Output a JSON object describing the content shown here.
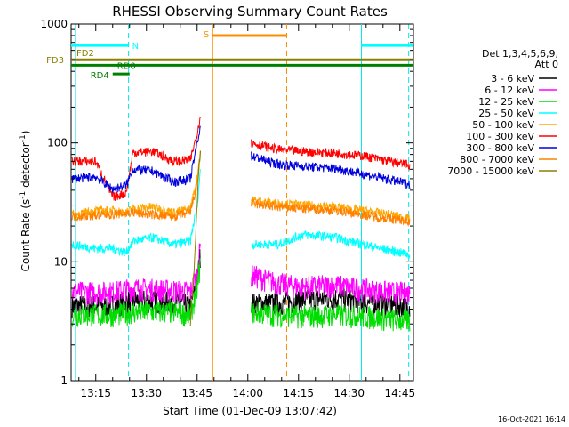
{
  "chart_data": {
    "type": "line",
    "title": "RHESSI Observing Summary Count Rates",
    "xlabel": "Start Time (01-Dec-09 13:07:42)",
    "ylabel_parts": [
      "Count Rate (s",
      "-1",
      " detector",
      "-1",
      ")"
    ],
    "yscale": "log",
    "ylim": [
      1,
      1000
    ],
    "xlim_min": [
      787.7,
      889
    ],
    "x_ticks": [
      {
        "v": 795,
        "label": "13:15"
      },
      {
        "v": 810,
        "label": "13:30"
      },
      {
        "v": 825,
        "label": "13:45"
      },
      {
        "v": 840,
        "label": "14:00"
      },
      {
        "v": 855,
        "label": "14:15"
      },
      {
        "v": 870,
        "label": "14:30"
      },
      {
        "v": 885,
        "label": "14:45"
      }
    ],
    "y_ticks": [
      {
        "v": 1,
        "label": "1"
      },
      {
        "v": 10,
        "label": "10"
      },
      {
        "v": 100,
        "label": "100"
      },
      {
        "v": 1000,
        "label": "1000"
      }
    ],
    "legend_header": [
      "Det 1,3,4,5,6,9,",
      "Att 0"
    ],
    "series": [
      {
        "name": "3 - 6 keV",
        "color": "#000000",
        "x": [
          788,
          800,
          806,
          818,
          823,
          825,
          826
        ],
        "values": [
          4.3,
          4.3,
          4.8,
          4.6,
          4.3,
          7,
          12
        ],
        "x2": [
          841,
          849,
          856,
          866,
          874,
          882,
          888
        ],
        "values2": [
          4.5,
          4.5,
          4.8,
          5,
          4.6,
          4.4,
          4.2
        ]
      },
      {
        "name": "6 - 12 keV",
        "color": "#ff00ff",
        "x": [
          788,
          800,
          806,
          818,
          823,
          825,
          826
        ],
        "values": [
          5.6,
          5.6,
          6,
          5.8,
          5.6,
          8,
          14
        ],
        "x2": [
          841,
          849,
          856,
          866,
          874,
          882,
          888
        ],
        "values2": [
          7.8,
          6.6,
          6.2,
          6.4,
          5.9,
          5.6,
          5.5
        ]
      },
      {
        "name": "12 - 25 keV",
        "color": "#00dd00",
        "x": [
          788,
          800,
          806,
          818,
          823,
          825,
          826
        ],
        "values": [
          3.6,
          3.6,
          3.8,
          3.8,
          3.6,
          6,
          10
        ],
        "x2": [
          841,
          849,
          856,
          866,
          874,
          882,
          888
        ],
        "values2": [
          3.8,
          3.6,
          3.5,
          3.6,
          3.5,
          3.3,
          3.2
        ]
      },
      {
        "name": "25 - 50 keV",
        "color": "#00ffff",
        "x": [
          788,
          795,
          800,
          804,
          806,
          812,
          818,
          823,
          825,
          826
        ],
        "values": [
          14,
          13,
          13,
          12,
          15,
          16,
          14,
          15,
          30,
          60
        ],
        "x2": [
          841,
          849,
          856,
          862,
          866,
          874,
          882,
          888
        ],
        "values2": [
          14,
          14,
          17,
          16.5,
          16,
          14,
          12.5,
          11.5
        ]
      },
      {
        "name": "50 - 100 keV",
        "color": "#ffa500",
        "x": [
          788,
          795,
          800,
          804,
          806,
          812,
          818,
          823,
          825,
          826
        ],
        "values": [
          25,
          27,
          27,
          26,
          28,
          29,
          26,
          28,
          50,
          90
        ],
        "x2": [
          841,
          849,
          856,
          866,
          874,
          882,
          888
        ],
        "values2": [
          33,
          31,
          30,
          29,
          27,
          25,
          23
        ]
      },
      {
        "name": "100 - 300 keV",
        "color": "#ff0000",
        "x": [
          788,
          795,
          800,
          804,
          806,
          812,
          818,
          823,
          825,
          826
        ],
        "values": [
          70,
          70,
          35,
          38,
          83,
          85,
          70,
          72,
          120,
          175
        ],
        "x2": [
          841,
          849,
          856,
          866,
          874,
          882,
          888
        ],
        "values2": [
          100,
          88,
          85,
          82,
          78,
          70,
          65
        ]
      },
      {
        "name": "300 - 800 keV",
        "color": "#0000dd",
        "x": [
          788,
          795,
          800,
          804,
          806,
          812,
          818,
          823,
          825,
          826
        ],
        "values": [
          50,
          52,
          41,
          44,
          60,
          58,
          47,
          50,
          100,
          140
        ],
        "x2": [
          841,
          849,
          856,
          866,
          874,
          882,
          888
        ],
        "values2": [
          78,
          66,
          64,
          61,
          55,
          49,
          45
        ]
      },
      {
        "name": "800 - 7000 keV",
        "color": "#ff8000",
        "x": [
          788,
          800,
          806,
          818,
          823,
          825,
          826
        ],
        "values": [
          24,
          25,
          26,
          24,
          26,
          45,
          80
        ],
        "x2": [
          841,
          849,
          856,
          866,
          874,
          882,
          888
        ],
        "values2": [
          31,
          29,
          28,
          27,
          25,
          23,
          22
        ]
      },
      {
        "name": "7000 - 15000 keV",
        "color": "#8b8000",
        "x": [
          823,
          824,
          825,
          825.5,
          826
        ],
        "values": [
          3,
          8,
          30,
          60,
          90
        ],
        "x2": [
          841,
          888
        ],
        "values2": [
          1,
          1
        ]
      }
    ],
    "verticals": [
      {
        "x": 789.0,
        "style": "solid",
        "color": "#00e5ee"
      },
      {
        "x": 804.7,
        "style": "dash",
        "color": "#00e5ee"
      },
      {
        "x": 829.6,
        "style": "solid",
        "color": "#ff8c00"
      },
      {
        "x": 851.5,
        "style": "dash",
        "color": "#ff8c00"
      },
      {
        "x": 873.6,
        "style": "solid",
        "color": "#00e5ee"
      },
      {
        "x": 887.6,
        "style": "dash",
        "color": "#00e5ee"
      }
    ],
    "flag_bars": [
      {
        "label": "N",
        "x1": 787.7,
        "x2": 804.7,
        "y": 660,
        "color": "#00ffff",
        "side": "right"
      },
      {
        "label": "",
        "x1": 873.6,
        "x2": 889,
        "y": 660,
        "color": "#00ffff",
        "side": "none"
      },
      {
        "label": "S",
        "x1": 829.6,
        "x2": 851.5,
        "y": 800,
        "color": "#ff8c00",
        "side": "left"
      },
      {
        "label": "FD2",
        "x1": 787.7,
        "x2": 889,
        "y": 500,
        "color": "#8b8000",
        "side": "left"
      },
      {
        "label": "RD4",
        "x1": 800,
        "x2": 805,
        "y": 380,
        "color": "#008000",
        "side": "left"
      },
      {
        "label": "RD0",
        "x1": 787.7,
        "x2": 889,
        "y": 450,
        "color": "#008000",
        "side": "right_of_rd4"
      }
    ],
    "flag_left_label": {
      "text": "FD3",
      "color": "#8b8000"
    }
  },
  "timestamp": "16-Oct-2021 16:14"
}
